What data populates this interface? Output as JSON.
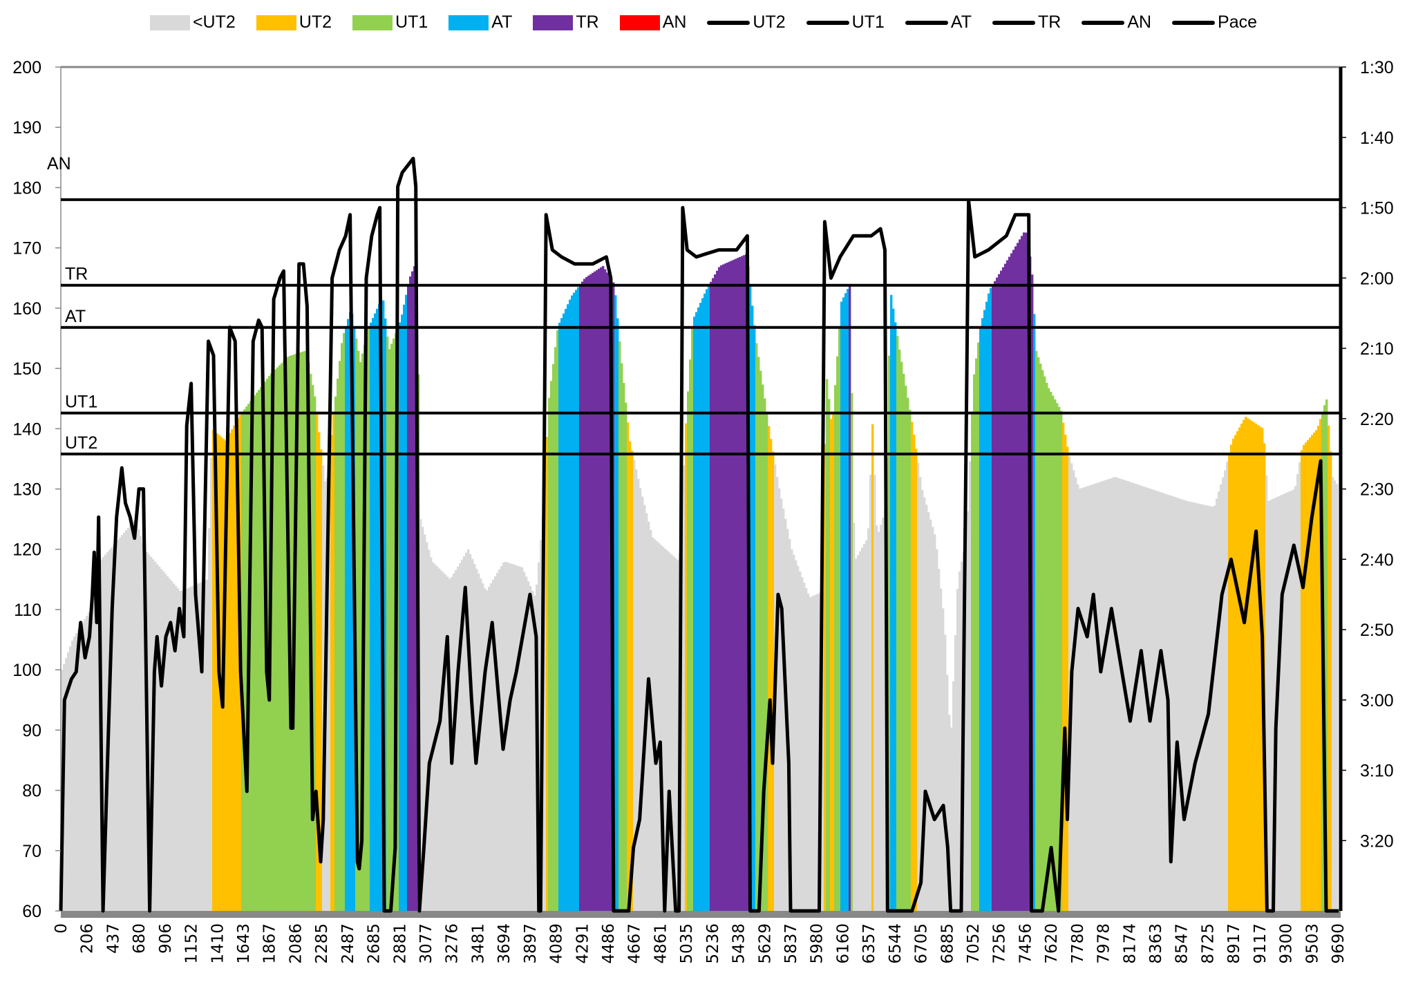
{
  "chart_data": {
    "type": "area",
    "title": "",
    "xlabel": "",
    "ylabel": "",
    "ylim": [
      60,
      200
    ],
    "yticks": [
      60,
      70,
      80,
      90,
      100,
      110,
      120,
      130,
      140,
      150,
      160,
      170,
      180,
      190,
      200
    ],
    "y2lim_seconds": [
      90,
      210
    ],
    "y2_inverted": true,
    "y2ticks": [
      "1:30",
      "1:40",
      "1:50",
      "2:00",
      "2:10",
      "2:20",
      "2:30",
      "2:40",
      "2:50",
      "3:00",
      "3:10",
      "3:20"
    ],
    "categories": [
      "0",
      "206",
      "437",
      "680",
      "906",
      "1152",
      "1410",
      "1643",
      "1867",
      "2086",
      "2285",
      "2487",
      "2685",
      "2881",
      "3077",
      "3276",
      "3481",
      "3694",
      "3897",
      "4089",
      "4291",
      "4486",
      "4667",
      "4861",
      "5035",
      "5236",
      "5438",
      "5629",
      "5837",
      "5980",
      "6160",
      "6357",
      "6544",
      "6705",
      "6885",
      "7052",
      "7256",
      "7456",
      "7620",
      "7780",
      "7978",
      "8174",
      "8363",
      "8547",
      "8725",
      "8917",
      "9117",
      "9300",
      "9503",
      "9690"
    ],
    "legend": {
      "placement": "top",
      "items": [
        {
          "label": "<UT2",
          "kind": "area",
          "color": "#d9d9d9"
        },
        {
          "label": "UT2",
          "kind": "area",
          "color": "#ffc000"
        },
        {
          "label": "UT1",
          "kind": "area",
          "color": "#92d050"
        },
        {
          "label": "AT",
          "kind": "area",
          "color": "#00b0f0"
        },
        {
          "label": "TR",
          "kind": "area",
          "color": "#7030a0"
        },
        {
          "label": "AN",
          "kind": "area",
          "color": "#ff0000"
        },
        {
          "label": "UT2",
          "kind": "line",
          "color": "#000000"
        },
        {
          "label": "UT1",
          "kind": "line",
          "color": "#000000"
        },
        {
          "label": "AT",
          "kind": "line",
          "color": "#000000"
        },
        {
          "label": "TR",
          "kind": "line",
          "color": "#000000"
        },
        {
          "label": "AN",
          "kind": "line",
          "color": "#000000"
        },
        {
          "label": "Pace",
          "kind": "line",
          "color": "#000000"
        }
      ]
    },
    "zones": [
      {
        "name": "<UT2",
        "max": 135.8,
        "color": "#d9d9d9"
      },
      {
        "name": "UT2",
        "max": 142.6,
        "color": "#ffc000"
      },
      {
        "name": "UT1",
        "max": 156.8,
        "color": "#92d050"
      },
      {
        "name": "AT",
        "max": 163.8,
        "color": "#00b0f0"
      },
      {
        "name": "TR",
        "max": 178,
        "color": "#7030a0"
      },
      {
        "name": "AN",
        "max": 999,
        "color": "#ff0000"
      }
    ],
    "thresholds": [
      {
        "label": "UT2",
        "value": 135.8
      },
      {
        "label": "UT1",
        "value": 142.6
      },
      {
        "label": "AT",
        "value": 156.8
      },
      {
        "label": "TR",
        "value": 163.8
      },
      {
        "label": "AN",
        "value": 178
      }
    ],
    "heart_rate_points_note": "x = position on category axis (index), y = bpm",
    "heart_rate": [
      [
        0,
        100
      ],
      [
        0.41,
        105
      ],
      [
        1.1,
        110
      ],
      [
        1.45,
        118
      ],
      [
        2.83,
        125
      ],
      [
        3.17,
        120
      ],
      [
        4.55,
        113
      ],
      [
        5.59,
        115
      ],
      [
        5.76,
        140
      ],
      [
        6.28,
        138
      ],
      [
        6.79,
        142
      ],
      [
        7.48,
        146
      ],
      [
        8,
        149
      ],
      [
        8.69,
        152
      ],
      [
        9.38,
        153
      ],
      [
        9.72,
        145
      ],
      [
        9.9,
        138
      ],
      [
        10.14,
        130
      ],
      [
        10.41,
        142
      ],
      [
        10.76,
        155
      ],
      [
        11.1,
        160
      ],
      [
        11.45,
        151
      ],
      [
        11.79,
        157
      ],
      [
        12.31,
        162
      ],
      [
        12.55,
        153
      ],
      [
        13,
        158
      ],
      [
        13.34,
        165
      ],
      [
        13.62,
        168
      ],
      [
        13.76,
        125
      ],
      [
        14.2,
        118
      ],
      [
        14.9,
        115
      ],
      [
        15.59,
        120
      ],
      [
        16.28,
        113
      ],
      [
        16.97,
        118
      ],
      [
        17.66,
        117
      ],
      [
        18.17,
        112
      ],
      [
        18.45,
        125
      ],
      [
        18.69,
        145
      ],
      [
        19.03,
        157
      ],
      [
        19.55,
        162
      ],
      [
        20.07,
        165
      ],
      [
        20.76,
        167
      ],
      [
        21.2,
        164
      ],
      [
        21.45,
        152
      ],
      [
        21.79,
        138
      ],
      [
        22.2,
        130
      ],
      [
        22.66,
        122
      ],
      [
        23.17,
        120
      ],
      [
        23.69,
        118
      ],
      [
        23.93,
        140
      ],
      [
        24.2,
        158
      ],
      [
        24.72,
        163
      ],
      [
        25.24,
        167
      ],
      [
        26.28,
        169
      ],
      [
        26.62,
        155
      ],
      [
        27.14,
        140
      ],
      [
        27.48,
        131
      ],
      [
        28,
        120
      ],
      [
        28.69,
        112
      ],
      [
        29.2,
        113
      ],
      [
        29.31,
        150
      ],
      [
        29.55,
        140
      ],
      [
        29.9,
        161
      ],
      [
        30.24,
        164
      ],
      [
        30.41,
        118
      ],
      [
        30.93,
        122
      ],
      [
        31.1,
        141
      ],
      [
        31.28,
        122
      ],
      [
        31.62,
        127
      ],
      [
        31.79,
        163
      ],
      [
        32.14,
        153
      ],
      [
        32.66,
        140
      ],
      [
        33,
        130
      ],
      [
        33.52,
        122
      ],
      [
        33.86,
        108
      ],
      [
        34.1,
        88
      ],
      [
        34.38,
        115
      ],
      [
        34.72,
        122
      ],
      [
        34.97,
        148
      ],
      [
        35.24,
        157
      ],
      [
        35.59,
        163
      ],
      [
        36.28,
        168
      ],
      [
        36.97,
        173
      ],
      [
        37.21,
        167
      ],
      [
        37.38,
        153
      ],
      [
        37.83,
        147
      ],
      [
        38.34,
        143
      ],
      [
        38.62,
        136
      ],
      [
        39.03,
        130
      ],
      [
        40.41,
        132
      ],
      [
        41.79,
        130
      ],
      [
        43.17,
        128
      ],
      [
        44.21,
        127
      ],
      [
        44.62,
        133
      ],
      [
        44.9,
        138
      ],
      [
        45.41,
        142
      ],
      [
        46.1,
        140
      ],
      [
        46.28,
        128
      ],
      [
        47.31,
        130
      ],
      [
        47.59,
        137
      ],
      [
        48.17,
        140
      ],
      [
        48.52,
        145
      ],
      [
        48.76,
        132
      ],
      [
        49.03,
        130
      ]
    ],
    "pace_seconds": [
      [
        0,
        210
      ],
      [
        0.14,
        180
      ],
      [
        0.41,
        177
      ],
      [
        0.59,
        176
      ],
      [
        0.76,
        169
      ],
      [
        0.93,
        174
      ],
      [
        1.1,
        171
      ],
      [
        1.21,
        165
      ],
      [
        1.28,
        159
      ],
      [
        1.38,
        169
      ],
      [
        1.45,
        154
      ],
      [
        1.62,
        210
      ],
      [
        1.79,
        189
      ],
      [
        1.97,
        167
      ],
      [
        2.14,
        154
      ],
      [
        2.34,
        147
      ],
      [
        2.48,
        152
      ],
      [
        2.66,
        154
      ],
      [
        2.83,
        157
      ],
      [
        3,
        150
      ],
      [
        3.17,
        150
      ],
      [
        3.41,
        210
      ],
      [
        3.59,
        176
      ],
      [
        3.69,
        171
      ],
      [
        3.86,
        178
      ],
      [
        4.03,
        171
      ],
      [
        4.21,
        169
      ],
      [
        4.38,
        173
      ],
      [
        4.55,
        167
      ],
      [
        4.72,
        171
      ],
      [
        4.83,
        141
      ],
      [
        5,
        135
      ],
      [
        5.17,
        165
      ],
      [
        5.41,
        176
      ],
      [
        5.66,
        129
      ],
      [
        5.86,
        131
      ],
      [
        6.07,
        176
      ],
      [
        6.21,
        181
      ],
      [
        6.48,
        127
      ],
      [
        6.69,
        129
      ],
      [
        6.9,
        176
      ],
      [
        7.14,
        193
      ],
      [
        7.38,
        129
      ],
      [
        7.59,
        126
      ],
      [
        7.72,
        127
      ],
      [
        7.9,
        176
      ],
      [
        8,
        180
      ],
      [
        8.17,
        123
      ],
      [
        8.41,
        120
      ],
      [
        8.55,
        119
      ],
      [
        8.83,
        184
      ],
      [
        8.9,
        184
      ],
      [
        9.14,
        118
      ],
      [
        9.31,
        118
      ],
      [
        9.45,
        124
      ],
      [
        9.66,
        197
      ],
      [
        9.79,
        193
      ],
      [
        9.97,
        203
      ],
      [
        10.07,
        197
      ],
      [
        10.41,
        120
      ],
      [
        10.69,
        116
      ],
      [
        10.93,
        114
      ],
      [
        11.1,
        111
      ],
      [
        11.38,
        203
      ],
      [
        11.45,
        204
      ],
      [
        11.55,
        200
      ],
      [
        11.72,
        120
      ],
      [
        11.93,
        114
      ],
      [
        12.14,
        111
      ],
      [
        12.24,
        110
      ],
      [
        12.41,
        210
      ],
      [
        12.66,
        210
      ],
      [
        12.83,
        201
      ],
      [
        12.93,
        107
      ],
      [
        13.1,
        105
      ],
      [
        13.52,
        103
      ],
      [
        13.62,
        107
      ],
      [
        13.76,
        210
      ],
      [
        13.93,
        201
      ],
      [
        14.14,
        189
      ],
      [
        14.55,
        183
      ],
      [
        14.83,
        171
      ],
      [
        15,
        189
      ],
      [
        15.24,
        176
      ],
      [
        15.52,
        164
      ],
      [
        15.76,
        180
      ],
      [
        15.93,
        189
      ],
      [
        16.28,
        176
      ],
      [
        16.55,
        169
      ],
      [
        16.97,
        187
      ],
      [
        17.24,
        180
      ],
      [
        17.48,
        176
      ],
      [
        18,
        165
      ],
      [
        18.24,
        171
      ],
      [
        18.34,
        210
      ],
      [
        18.41,
        210
      ],
      [
        18.62,
        111
      ],
      [
        18.86,
        116
      ],
      [
        19.21,
        117
      ],
      [
        19.72,
        118
      ],
      [
        20.41,
        118
      ],
      [
        20.93,
        117
      ],
      [
        21.1,
        120
      ],
      [
        21.21,
        210
      ],
      [
        21.79,
        210
      ],
      [
        21.97,
        201
      ],
      [
        22.21,
        197
      ],
      [
        22.55,
        177
      ],
      [
        22.83,
        189
      ],
      [
        23,
        186
      ],
      [
        23.17,
        210
      ],
      [
        23.34,
        193
      ],
      [
        23.59,
        210
      ],
      [
        23.72,
        210
      ],
      [
        23.86,
        110
      ],
      [
        24.03,
        116
      ],
      [
        24.38,
        117
      ],
      [
        25.24,
        116
      ],
      [
        25.93,
        116
      ],
      [
        26.34,
        114
      ],
      [
        26.45,
        210
      ],
      [
        26.79,
        210
      ],
      [
        26.97,
        193
      ],
      [
        27.21,
        180
      ],
      [
        27.31,
        189
      ],
      [
        27.52,
        165
      ],
      [
        27.66,
        167
      ],
      [
        27.93,
        189
      ],
      [
        28,
        210
      ],
      [
        29.1,
        210
      ],
      [
        29.31,
        112
      ],
      [
        29.55,
        120
      ],
      [
        29.9,
        117
      ],
      [
        30.41,
        114
      ],
      [
        31.1,
        114
      ],
      [
        31.45,
        113
      ],
      [
        31.62,
        116
      ],
      [
        31.72,
        210
      ],
      [
        32.66,
        210
      ],
      [
        32.83,
        208
      ],
      [
        33,
        206
      ],
      [
        33.17,
        193
      ],
      [
        33.52,
        197
      ],
      [
        33.86,
        195
      ],
      [
        34.03,
        201
      ],
      [
        34.14,
        210
      ],
      [
        34.55,
        210
      ],
      [
        34.83,
        109
      ],
      [
        35.07,
        117
      ],
      [
        35.59,
        116
      ],
      [
        36.28,
        114
      ],
      [
        36.62,
        111
      ],
      [
        37.14,
        111
      ],
      [
        37.24,
        210
      ],
      [
        37.66,
        210
      ],
      [
        38,
        201
      ],
      [
        38.28,
        210
      ],
      [
        38.52,
        184
      ],
      [
        38.62,
        197
      ],
      [
        38.79,
        176
      ],
      [
        39.03,
        167
      ],
      [
        39.38,
        171
      ],
      [
        39.62,
        165
      ],
      [
        39.9,
        176
      ],
      [
        40.31,
        167
      ],
      [
        40.76,
        177
      ],
      [
        41.03,
        183
      ],
      [
        41.45,
        173
      ],
      [
        41.79,
        183
      ],
      [
        42.21,
        173
      ],
      [
        42.48,
        180
      ],
      [
        42.59,
        203
      ],
      [
        42.83,
        186
      ],
      [
        43.1,
        197
      ],
      [
        43.52,
        189
      ],
      [
        44.03,
        182
      ],
      [
        44.55,
        165
      ],
      [
        44.9,
        160
      ],
      [
        45.41,
        169
      ],
      [
        45.86,
        156
      ],
      [
        46.1,
        171
      ],
      [
        46.28,
        210
      ],
      [
        46.52,
        210
      ],
      [
        46.62,
        184
      ],
      [
        46.86,
        165
      ],
      [
        47.31,
        158
      ],
      [
        47.66,
        164
      ],
      [
        48,
        154
      ],
      [
        48.34,
        146
      ],
      [
        48.55,
        210
      ],
      [
        49.03,
        210
      ]
    ]
  }
}
